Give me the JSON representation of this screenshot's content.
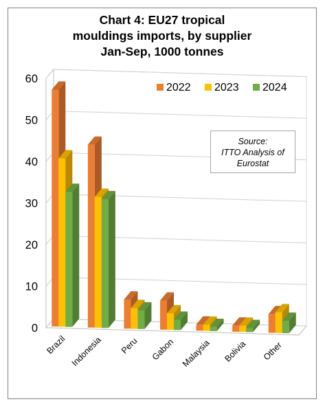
{
  "chart_data": {
    "type": "bar",
    "title_lines": [
      "Chart 4: EU27 tropical",
      "mouldings imports, by supplier",
      "Jan-Sep, 1000 tonnes"
    ],
    "categories": [
      "Brazil",
      "Indonesia",
      "Peru",
      "Gabon",
      "Malaysia",
      "Bolivia",
      "Other"
    ],
    "series": [
      {
        "name": "2022",
        "color": "#ED7D31",
        "values": [
          57,
          44,
          7,
          7,
          1.5,
          1.5,
          4.5
        ]
      },
      {
        "name": "2023",
        "color": "#FFC000",
        "values": [
          40.5,
          31.5,
          5,
          4,
          1.5,
          1.5,
          5
        ]
      },
      {
        "name": "2024",
        "color": "#70AD47",
        "values": [
          32.5,
          31,
          4.5,
          2.5,
          1,
          1,
          3
        ]
      }
    ],
    "ylim": [
      0,
      60
    ],
    "yticks": [
      0,
      10,
      20,
      30,
      40,
      50,
      60
    ],
    "grid": true,
    "legend_position": "top-right",
    "annotation_lines": [
      "Source:",
      "ITTO Analysis of",
      "Eurostat"
    ]
  }
}
